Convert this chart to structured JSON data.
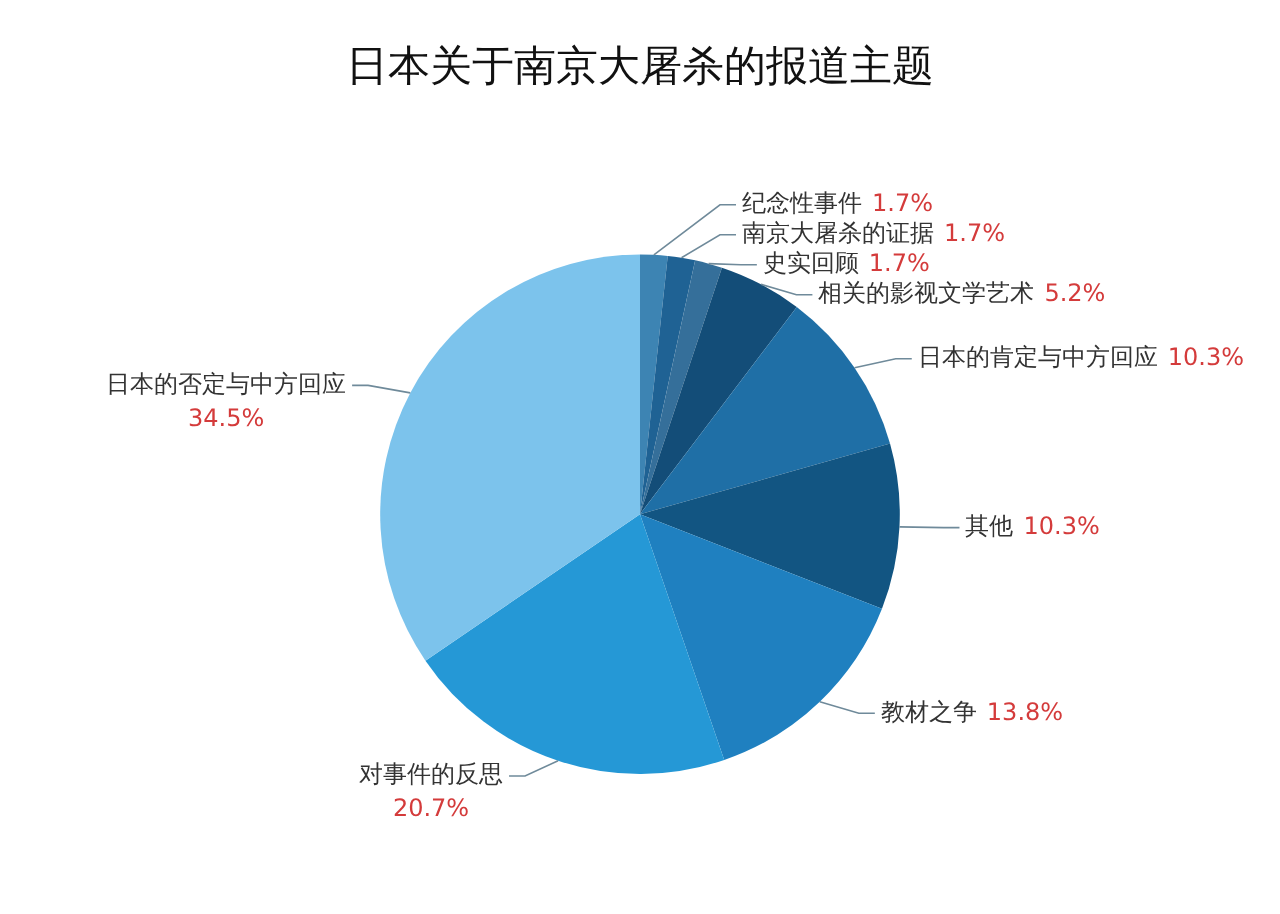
{
  "chart_data": {
    "type": "pie",
    "title": "日本关于南京大屠杀的报道主题",
    "categories": [
      "纪念性事件",
      "南京大屠杀的证据",
      "史实回顾",
      "相关的影视文学艺术",
      "日本的肯定与中方回应",
      "其他",
      "教材之争",
      "对事件的反思",
      "日本的否定与中方回应"
    ],
    "values": [
      1.7,
      1.7,
      1.7,
      5.2,
      10.3,
      10.3,
      13.8,
      20.7,
      34.5
    ],
    "value_labels": [
      "1.7%",
      "1.7%",
      "1.7%",
      "5.2%",
      "10.3%",
      "10.3%",
      "13.8%",
      "20.7%",
      "34.5%"
    ],
    "colors": [
      "#3d84b3",
      "#1f6294",
      "#356f9a",
      "#134d78",
      "#1f6fa6",
      "#125582",
      "#1f80c0",
      "#2598d6",
      "#7cc3ec"
    ]
  }
}
